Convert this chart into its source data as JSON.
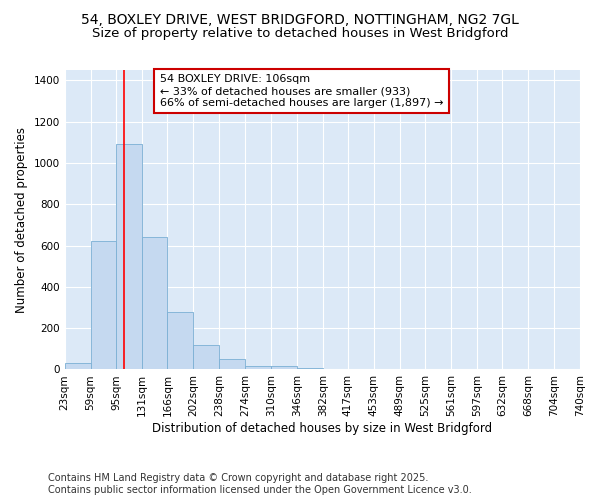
{
  "title_line1": "54, BOXLEY DRIVE, WEST BRIDGFORD, NOTTINGHAM, NG2 7GL",
  "title_line2": "Size of property relative to detached houses in West Bridgford",
  "xlabel": "Distribution of detached houses by size in West Bridgford",
  "ylabel": "Number of detached properties",
  "bin_labels": [
    "23sqm",
    "59sqm",
    "95sqm",
    "131sqm",
    "166sqm",
    "202sqm",
    "238sqm",
    "274sqm",
    "310sqm",
    "346sqm",
    "382sqm",
    "417sqm",
    "453sqm",
    "489sqm",
    "525sqm",
    "561sqm",
    "597sqm",
    "632sqm",
    "668sqm",
    "704sqm",
    "740sqm"
  ],
  "bin_edges": [
    23,
    59,
    95,
    131,
    166,
    202,
    238,
    274,
    310,
    346,
    382,
    417,
    453,
    489,
    525,
    561,
    597,
    632,
    668,
    704,
    740
  ],
  "bar_heights": [
    30,
    620,
    1090,
    640,
    280,
    120,
    50,
    15,
    15,
    5,
    0,
    0,
    0,
    0,
    0,
    0,
    0,
    0,
    0,
    0
  ],
  "bar_color": "#c5d9f0",
  "bar_edge_color": "#7bafd4",
  "background_color": "#dce9f7",
  "fig_background_color": "#ffffff",
  "red_line_x": 106,
  "annotation_text": "54 BOXLEY DRIVE: 106sqm\n← 33% of detached houses are smaller (933)\n66% of semi-detached houses are larger (1,897) →",
  "annotation_box_facecolor": "#ffffff",
  "annotation_border_color": "#cc0000",
  "ylim": [
    0,
    1450
  ],
  "yticks": [
    0,
    200,
    400,
    600,
    800,
    1000,
    1200,
    1400
  ],
  "footer_line1": "Contains HM Land Registry data © Crown copyright and database right 2025.",
  "footer_line2": "Contains public sector information licensed under the Open Government Licence v3.0.",
  "title_fontsize": 10,
  "subtitle_fontsize": 9.5,
  "axis_label_fontsize": 8.5,
  "tick_fontsize": 7.5,
  "annotation_fontsize": 8,
  "footer_fontsize": 7
}
